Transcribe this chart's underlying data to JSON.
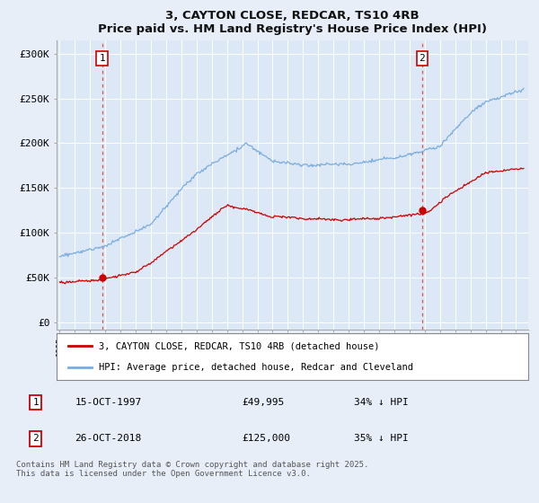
{
  "title": "3, CAYTON CLOSE, REDCAR, TS10 4RB",
  "subtitle": "Price paid vs. HM Land Registry's House Price Index (HPI)",
  "ylabel_ticks": [
    "£0",
    "£50K",
    "£100K",
    "£150K",
    "£200K",
    "£250K",
    "£300K"
  ],
  "ytick_values": [
    0,
    50000,
    100000,
    150000,
    200000,
    250000,
    300000
  ],
  "ylim": [
    -8000,
    315000
  ],
  "xlim_start": 1994.8,
  "xlim_end": 2025.8,
  "hpi_color": "#7aaddc",
  "price_color": "#cc0000",
  "vline_color": "#dd4444",
  "marker1_date": 1997.79,
  "marker2_date": 2018.82,
  "marker1_price": 49995,
  "marker2_price": 125000,
  "annotation1": "1",
  "annotation2": "2",
  "legend_label_red": "3, CAYTON CLOSE, REDCAR, TS10 4RB (detached house)",
  "legend_label_blue": "HPI: Average price, detached house, Redcar and Cleveland",
  "table_row1": [
    "1",
    "15-OCT-1997",
    "£49,995",
    "34% ↓ HPI"
  ],
  "table_row2": [
    "2",
    "26-OCT-2018",
    "£125,000",
    "35% ↓ HPI"
  ],
  "footer": "Contains HM Land Registry data © Crown copyright and database right 2025.\nThis data is licensed under the Open Government Licence v3.0.",
  "bg_color": "#e8eef8",
  "plot_bg": "#dce8f5",
  "grid_color": "#ffffff"
}
